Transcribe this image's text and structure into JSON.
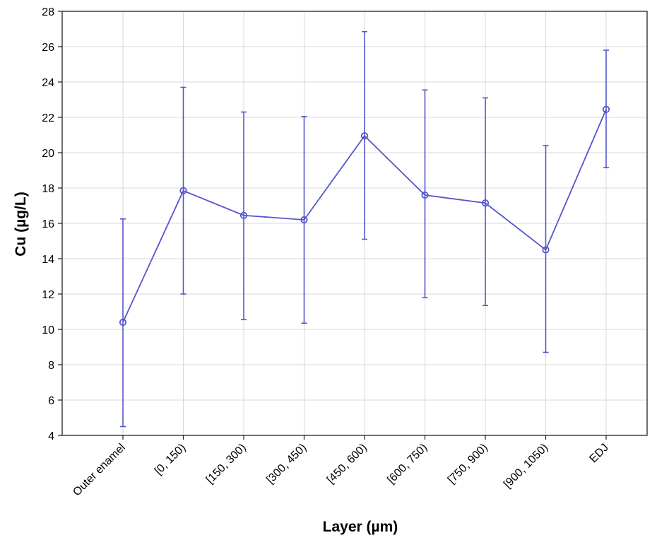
{
  "chart_data": {
    "type": "line",
    "title": "",
    "xlabel": "Layer (µm)",
    "ylabel": "Cu (µg/L)",
    "categories": [
      "Outer enamel",
      "[0, 150)",
      "[150, 300)",
      "[300, 450)",
      "[450, 600)",
      "[600, 750)",
      "[750, 900)",
      "[900, 1050)",
      "EDJ"
    ],
    "ylim": [
      4,
      28
    ],
    "yticks": [
      4,
      6,
      8,
      10,
      12,
      14,
      16,
      18,
      20,
      22,
      24,
      26,
      28
    ],
    "grid": true,
    "series": [
      {
        "values": [
          10.4,
          17.85,
          16.45,
          16.2,
          20.95,
          17.6,
          17.15,
          14.5,
          22.45
        ],
        "error_low": [
          4.5,
          12.0,
          10.55,
          10.35,
          15.1,
          11.8,
          11.35,
          8.7,
          19.15
        ],
        "error_high": [
          16.25,
          23.7,
          22.3,
          22.05,
          26.85,
          23.55,
          23.1,
          20.4,
          25.8
        ],
        "color": "#5555cc"
      }
    ]
  }
}
